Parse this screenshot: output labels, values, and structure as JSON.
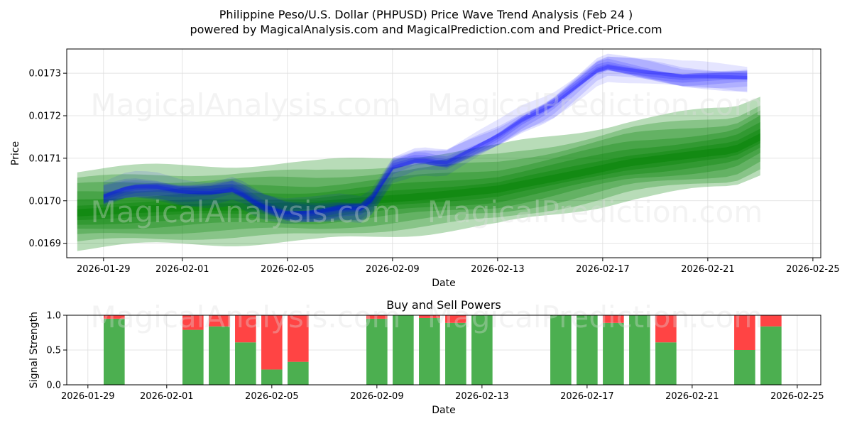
{
  "header": {
    "title_line1": "Philippine Peso/U.S. Dollar (PHPUSD) Price Wave Trend Analysis (Feb 24 )",
    "title_line2": "powered by MagicalAnalysis.com and MagicalPrediction.com and Predict-Price.com"
  },
  "watermarks": [
    "MagicalAnalysis.com",
    "MagicalPrediction.com"
  ],
  "colors": {
    "blue": "#0000ff",
    "green": "#008000",
    "buy": "#4caf50",
    "sell": "#ff4444",
    "grid": "#dddddd",
    "axis": "#000000"
  },
  "chart_data": [
    {
      "type": "line",
      "name": "price-wave-chart",
      "xlabel": "Date",
      "ylabel": "Price",
      "x_tick_labels": [
        "2026-01-29",
        "2026-02-01",
        "2026-02-05",
        "2026-02-09",
        "2026-02-13",
        "2026-02-17",
        "2026-02-21",
        "2026-02-25"
      ],
      "y_tick_labels": [
        "0.0169",
        "0.0170",
        "0.0171",
        "0.0172",
        "0.0173"
      ],
      "xlim": [
        "2026-01-27.6",
        "2026-02-25.3"
      ],
      "ylim": [
        0.016866,
        0.017357
      ],
      "grid": true,
      "series": [
        {
          "name": "blue-wave-mean",
          "color": "#0000ff",
          "days": [
            0,
            1,
            2,
            3,
            4,
            5,
            6,
            7,
            8,
            9,
            10,
            11,
            12,
            13,
            14,
            15,
            16,
            17,
            18,
            19,
            20,
            21,
            22,
            23,
            24.5
          ],
          "values": [
            0.01701,
            0.01703,
            0.01703,
            0.01702,
            0.01702,
            0.01703,
            0.01699,
            0.01697,
            0.01697,
            0.01698,
            0.01698,
            0.01708,
            0.0171,
            0.01709,
            0.01712,
            0.01715,
            0.01719,
            0.01722,
            0.01727,
            0.01732,
            0.01731,
            0.0173,
            0.01729,
            0.01729,
            0.01729
          ]
        },
        {
          "name": "green-trend-mean",
          "color": "#008000",
          "days": [
            -1,
            0,
            4,
            8,
            12,
            15,
            17,
            20,
            24,
            25
          ],
          "values": [
            0.016972,
            0.016975,
            0.016985,
            0.016988,
            0.01701,
            0.017026,
            0.01705,
            0.01709,
            0.017118,
            0.01715
          ]
        }
      ]
    },
    {
      "type": "bar",
      "name": "buy-sell-powers",
      "title": "Buy and Sell Powers",
      "xlabel": "Date",
      "ylabel": "Signal Strength",
      "x_tick_labels": [
        "2026-01-29",
        "2026-02-01",
        "2026-02-05",
        "2026-02-09",
        "2026-02-13",
        "2026-02-17",
        "2026-02-21",
        "2026-02-25"
      ],
      "y_tick_labels": [
        "0.0",
        "0.5",
        "1.0"
      ],
      "ylim": [
        0,
        1
      ],
      "categories": [
        "2026-01-30",
        "2026-02-02",
        "2026-02-03",
        "2026-02-04",
        "2026-02-05",
        "2026-02-06",
        "2026-02-09",
        "2026-02-10",
        "2026-02-11",
        "2026-02-12",
        "2026-02-13",
        "2026-02-16",
        "2026-02-17",
        "2026-02-18",
        "2026-02-19",
        "2026-02-20",
        "2026-02-23",
        "2026-02-24"
      ],
      "series": [
        {
          "name": "buy",
          "color": "#4caf50",
          "values": [
            0.95,
            0.79,
            0.84,
            0.61,
            0.22,
            0.33,
            0.95,
            1.0,
            0.96,
            0.89,
            1.0,
            1.0,
            1.0,
            0.89,
            1.0,
            0.61,
            0.5,
            0.84
          ]
        },
        {
          "name": "sell",
          "color": "#ff4444",
          "values": [
            0.05,
            0.21,
            0.16,
            0.39,
            0.78,
            0.67,
            0.05,
            0.0,
            0.04,
            0.11,
            0.0,
            0.0,
            0.0,
            0.11,
            0.0,
            0.39,
            0.5,
            0.16
          ]
        }
      ]
    }
  ]
}
